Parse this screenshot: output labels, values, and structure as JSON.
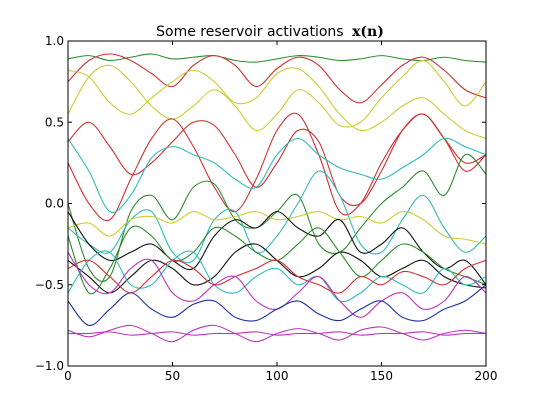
{
  "chart_data": {
    "type": "line",
    "title": "Some reservoir activations",
    "title_math": "x(n)",
    "xlabel": "",
    "ylabel": "",
    "xlim": [
      0,
      200
    ],
    "ylim": [
      -1.0,
      1.0
    ],
    "x_ticks": [
      "0",
      "50",
      "100",
      "150",
      "200"
    ],
    "y_ticks": [
      "−1.0",
      "−0.5",
      "0.0",
      "0.5",
      "1.0"
    ],
    "grid": false,
    "legend": "none",
    "series": [
      {
        "color": "#2e8b2e",
        "x": [
          0,
          10,
          20,
          30,
          40,
          50,
          60,
          70,
          80,
          90,
          100,
          110,
          120,
          130,
          140,
          150,
          160,
          170,
          180,
          190,
          200
        ],
        "values": [
          0.89,
          0.91,
          0.88,
          0.9,
          0.92,
          0.89,
          0.9,
          0.91,
          0.88,
          0.87,
          0.89,
          0.91,
          0.9,
          0.88,
          0.89,
          0.91,
          0.89,
          0.88,
          0.9,
          0.88,
          0.87
        ]
      },
      {
        "color": "#cc3333",
        "x": [
          0,
          10,
          20,
          30,
          40,
          50,
          60,
          70,
          80,
          90,
          100,
          110,
          120,
          130,
          140,
          150,
          160,
          170,
          180,
          190,
          200
        ],
        "values": [
          0.75,
          0.88,
          0.92,
          0.88,
          0.8,
          0.72,
          0.85,
          0.91,
          0.85,
          0.72,
          0.83,
          0.9,
          0.85,
          0.7,
          0.62,
          0.73,
          0.85,
          0.9,
          0.82,
          0.7,
          0.65
        ]
      },
      {
        "color": "#cccc33",
        "x": [
          0,
          10,
          20,
          30,
          40,
          50,
          60,
          70,
          80,
          90,
          100,
          110,
          120,
          130,
          140,
          150,
          160,
          170,
          180,
          190,
          200
        ],
        "values": [
          0.55,
          0.78,
          0.85,
          0.75,
          0.6,
          0.52,
          0.6,
          0.7,
          0.6,
          0.45,
          0.55,
          0.7,
          0.62,
          0.48,
          0.5,
          0.65,
          0.78,
          0.88,
          0.75,
          0.6,
          0.75
        ]
      },
      {
        "color": "#cccc33",
        "x": [
          0,
          10,
          20,
          30,
          40,
          50,
          60,
          70,
          80,
          90,
          100,
          110,
          120,
          130,
          140,
          150,
          160,
          170,
          180,
          190,
          200
        ],
        "values": [
          0.82,
          0.78,
          0.62,
          0.55,
          0.65,
          0.75,
          0.82,
          0.75,
          0.62,
          0.65,
          0.8,
          0.83,
          0.72,
          0.55,
          0.45,
          0.5,
          0.6,
          0.65,
          0.55,
          0.45,
          0.4
        ]
      },
      {
        "color": "#cc3333",
        "x": [
          0,
          10,
          20,
          30,
          40,
          50,
          60,
          70,
          80,
          90,
          100,
          110,
          120,
          130,
          140,
          150,
          160,
          170,
          180,
          190,
          200
        ],
        "values": [
          0.38,
          0.5,
          0.35,
          0.18,
          0.25,
          0.38,
          0.5,
          0.48,
          0.3,
          0.1,
          0.25,
          0.45,
          0.38,
          0.05,
          0.0,
          0.2,
          0.45,
          0.55,
          0.4,
          0.2,
          0.3
        ]
      },
      {
        "color": "#cc3333",
        "x": [
          0,
          10,
          20,
          30,
          40,
          50,
          60,
          70,
          80,
          90,
          100,
          110,
          120,
          130,
          140,
          150,
          160,
          170,
          180,
          190,
          200
        ],
        "values": [
          0.25,
          0.0,
          -0.1,
          0.15,
          0.4,
          0.52,
          0.35,
          0.1,
          -0.05,
          0.15,
          0.45,
          0.55,
          0.3,
          -0.05,
          0.0,
          0.25,
          0.45,
          0.55,
          0.4,
          0.25,
          0.3
        ]
      },
      {
        "color": "#33bbbb",
        "x": [
          0,
          10,
          20,
          30,
          40,
          50,
          60,
          70,
          80,
          90,
          100,
          110,
          120,
          130,
          140,
          150,
          160,
          170,
          180,
          190,
          200
        ],
        "values": [
          0.4,
          0.2,
          -0.05,
          0.05,
          0.28,
          0.35,
          0.3,
          0.25,
          0.15,
          0.1,
          0.3,
          0.4,
          0.3,
          0.22,
          0.18,
          0.15,
          0.22,
          0.3,
          0.4,
          0.35,
          0.3
        ]
      },
      {
        "color": "#2e8b2e",
        "x": [
          0,
          10,
          20,
          30,
          40,
          50,
          60,
          70,
          80,
          90,
          100,
          110,
          120,
          130,
          140,
          150,
          160,
          170,
          180,
          190,
          200
        ],
        "values": [
          0.0,
          -0.4,
          -0.45,
          -0.05,
          0.05,
          -0.1,
          0.1,
          0.12,
          -0.1,
          -0.15,
          -0.05,
          0.05,
          -0.25,
          -0.3,
          -0.15,
          0.0,
          0.1,
          0.2,
          0.05,
          0.3,
          0.18
        ]
      },
      {
        "color": "#33bbbb",
        "x": [
          0,
          10,
          20,
          30,
          40,
          50,
          60,
          70,
          80,
          90,
          100,
          110,
          120,
          130,
          140,
          150,
          160,
          170,
          180,
          190,
          200
        ],
        "values": [
          -0.15,
          -0.25,
          -0.3,
          -0.1,
          -0.05,
          -0.3,
          -0.35,
          -0.1,
          -0.05,
          -0.3,
          -0.2,
          0.0,
          0.2,
          0.05,
          -0.25,
          -0.3,
          -0.1,
          0.05,
          -0.15,
          -0.3,
          -0.2
        ]
      },
      {
        "color": "#cccc33",
        "x": [
          0,
          10,
          20,
          30,
          40,
          50,
          60,
          70,
          80,
          90,
          100,
          110,
          120,
          130,
          140,
          150,
          160,
          170,
          180,
          190,
          200
        ],
        "values": [
          -0.15,
          -0.12,
          -0.2,
          -0.1,
          -0.08,
          -0.12,
          -0.05,
          -0.1,
          -0.08,
          -0.05,
          -0.1,
          -0.08,
          -0.05,
          -0.1,
          -0.08,
          -0.12,
          -0.05,
          -0.1,
          -0.2,
          -0.22,
          -0.25
        ]
      },
      {
        "color": "#111111",
        "x": [
          0,
          10,
          20,
          30,
          40,
          50,
          60,
          70,
          80,
          90,
          100,
          110,
          120,
          130,
          140,
          150,
          160,
          170,
          180,
          190,
          200
        ],
        "values": [
          -0.05,
          -0.25,
          -0.35,
          -0.3,
          -0.25,
          -0.35,
          -0.4,
          -0.2,
          -0.1,
          -0.15,
          -0.05,
          -0.15,
          -0.2,
          -0.1,
          -0.3,
          -0.25,
          -0.15,
          -0.3,
          -0.4,
          -0.35,
          -0.5
        ]
      },
      {
        "color": "#111111",
        "x": [
          0,
          10,
          20,
          30,
          40,
          50,
          60,
          70,
          80,
          90,
          100,
          110,
          120,
          130,
          140,
          150,
          160,
          170,
          180,
          190,
          200
        ],
        "values": [
          -0.35,
          -0.45,
          -0.55,
          -0.45,
          -0.35,
          -0.4,
          -0.5,
          -0.45,
          -0.3,
          -0.25,
          -0.35,
          -0.45,
          -0.4,
          -0.3,
          -0.35,
          -0.45,
          -0.4,
          -0.35,
          -0.45,
          -0.5,
          -0.52
        ]
      },
      {
        "color": "#2e8b2e",
        "x": [
          0,
          10,
          20,
          30,
          40,
          50,
          60,
          70,
          80,
          90,
          100,
          110,
          120,
          130,
          140,
          150,
          160,
          170,
          180,
          190,
          200
        ],
        "values": [
          -0.2,
          -0.55,
          -0.4,
          -0.15,
          -0.2,
          -0.35,
          -0.3,
          -0.15,
          -0.2,
          -0.3,
          -0.35,
          -0.25,
          -0.15,
          -0.3,
          -0.45,
          -0.35,
          -0.25,
          -0.3,
          -0.4,
          -0.45,
          -0.5
        ]
      },
      {
        "color": "#33bbbb",
        "x": [
          0,
          10,
          20,
          30,
          40,
          50,
          60,
          70,
          80,
          90,
          100,
          110,
          120,
          130,
          140,
          150,
          160,
          170,
          180,
          190,
          200
        ],
        "values": [
          -0.55,
          -0.35,
          -0.3,
          -0.5,
          -0.5,
          -0.35,
          -0.3,
          -0.5,
          -0.55,
          -0.45,
          -0.4,
          -0.5,
          -0.45,
          -0.6,
          -0.55,
          -0.45,
          -0.5,
          -0.55,
          -0.4,
          -0.5,
          -0.45
        ]
      },
      {
        "color": "#cc3333",
        "x": [
          0,
          10,
          20,
          30,
          40,
          50,
          60,
          70,
          80,
          90,
          100,
          110,
          120,
          130,
          140,
          150,
          160,
          170,
          180,
          190,
          200
        ],
        "values": [
          -0.4,
          -0.35,
          -0.45,
          -0.55,
          -0.45,
          -0.35,
          -0.4,
          -0.5,
          -0.45,
          -0.4,
          -0.35,
          -0.45,
          -0.5,
          -0.55,
          -0.45,
          -0.5,
          -0.42,
          -0.45,
          -0.5,
          -0.4,
          -0.35
        ]
      },
      {
        "color": "#bb33bb",
        "x": [
          0,
          10,
          20,
          30,
          40,
          50,
          60,
          70,
          80,
          90,
          100,
          110,
          120,
          130,
          140,
          150,
          160,
          170,
          180,
          190,
          200
        ],
        "values": [
          -0.3,
          -0.5,
          -0.55,
          -0.4,
          -0.35,
          -0.55,
          -0.6,
          -0.5,
          -0.45,
          -0.6,
          -0.65,
          -0.55,
          -0.45,
          -0.6,
          -0.7,
          -0.6,
          -0.55,
          -0.65,
          -0.6,
          -0.45,
          -0.55
        ]
      },
      {
        "color": "#1f2fa0",
        "x": [
          0,
          10,
          20,
          30,
          40,
          50,
          60,
          70,
          80,
          90,
          100,
          110,
          120,
          130,
          140,
          150,
          160,
          170,
          180,
          190,
          200
        ],
        "values": [
          -0.6,
          -0.75,
          -0.65,
          -0.55,
          -0.65,
          -0.7,
          -0.62,
          -0.6,
          -0.7,
          -0.72,
          -0.65,
          -0.6,
          -0.68,
          -0.72,
          -0.65,
          -0.6,
          -0.7,
          -0.72,
          -0.65,
          -0.6,
          -0.5
        ]
      },
      {
        "color": "#bb33bb",
        "x": [
          0,
          10,
          20,
          30,
          40,
          50,
          60,
          70,
          80,
          90,
          100,
          110,
          120,
          130,
          140,
          150,
          160,
          170,
          180,
          190,
          200
        ],
        "values": [
          -0.78,
          -0.82,
          -0.78,
          -0.75,
          -0.8,
          -0.85,
          -0.78,
          -0.75,
          -0.8,
          -0.85,
          -0.8,
          -0.77,
          -0.8,
          -0.84,
          -0.78,
          -0.76,
          -0.8,
          -0.84,
          -0.8,
          -0.78,
          -0.8
        ]
      },
      {
        "color": "#bb33bb",
        "x": [
          0,
          10,
          20,
          30,
          40,
          50,
          60,
          70,
          80,
          90,
          100,
          110,
          120,
          130,
          140,
          150,
          160,
          170,
          180,
          190,
          200
        ],
        "values": [
          -0.8,
          -0.8,
          -0.79,
          -0.81,
          -0.8,
          -0.79,
          -0.81,
          -0.8,
          -0.8,
          -0.79,
          -0.81,
          -0.8,
          -0.8,
          -0.79,
          -0.81,
          -0.8,
          -0.8,
          -0.79,
          -0.81,
          -0.8,
          -0.8
        ]
      }
    ]
  }
}
